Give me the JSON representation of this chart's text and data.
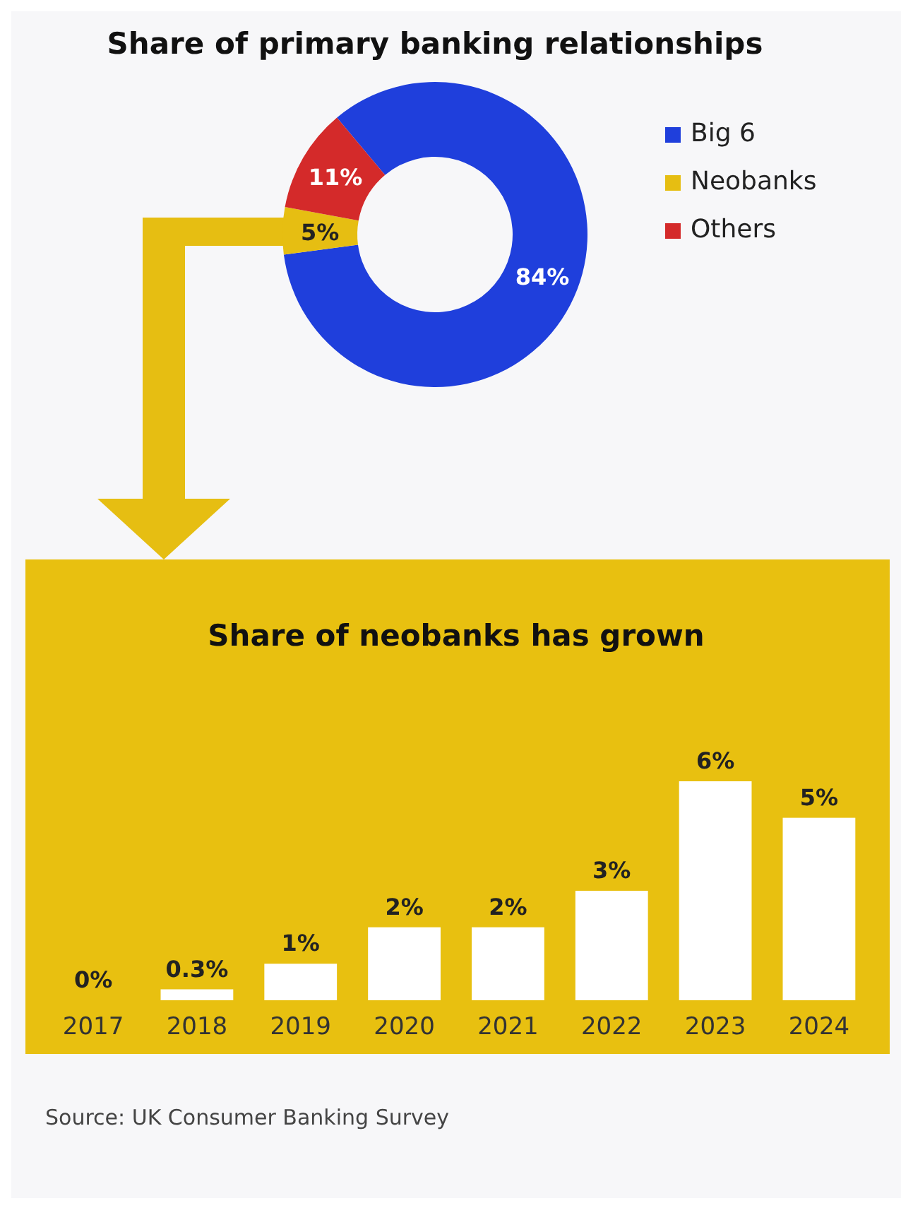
{
  "chart_data": [
    {
      "type": "donut",
      "title": "Share of primary banking relationships",
      "categories": [
        "Big 6",
        "Neobanks",
        "Others"
      ],
      "values": [
        84,
        5,
        11
      ],
      "colors": [
        "#1f3fdc",
        "#e6be12",
        "#d42a2a"
      ],
      "value_labels": [
        "84%",
        "5%",
        "11%"
      ],
      "legend": "right"
    },
    {
      "type": "bar",
      "title": "Share of neobanks has grown",
      "categories": [
        "2017",
        "2018",
        "2019",
        "2020",
        "2021",
        "2022",
        "2023",
        "2024"
      ],
      "values": [
        0,
        0.3,
        1,
        2,
        2,
        3,
        6,
        5
      ],
      "color": "#ffffff",
      "value_labels": [
        "0%",
        "0.3%",
        "1%",
        "2%",
        "2%",
        "3%",
        "6%",
        "5%"
      ],
      "annotations": [
        "Source: UK Consumer Banking Survey"
      ]
    }
  ]
}
